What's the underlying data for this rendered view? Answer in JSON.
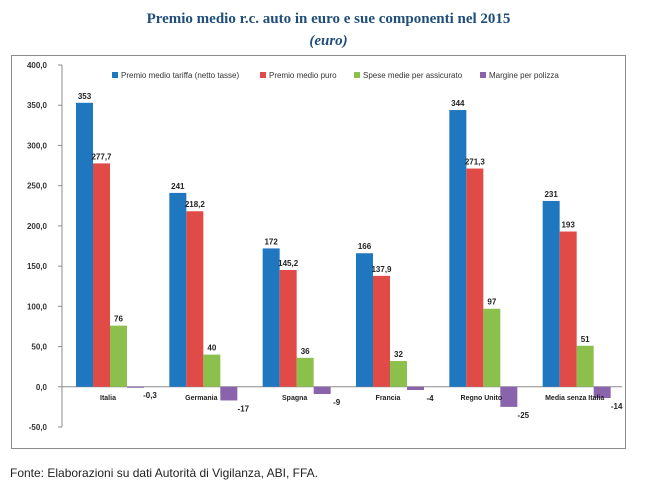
{
  "chart_data": {
    "type": "bar",
    "title": "Premio medio r.c. auto in euro e sue componenti nel 2015",
    "subtitle": "(euro)",
    "categories": [
      "Italia",
      "Germania",
      "Spagna",
      "Francia",
      "Regno Unito",
      "Media senza Italia"
    ],
    "series": [
      {
        "name": "Premio medio tariffa (netto tasse)",
        "color": "#1f77c0",
        "values": [
          353,
          241,
          172,
          166,
          344,
          231
        ],
        "labels": [
          "353",
          "241",
          "172",
          "166",
          "344",
          "231"
        ]
      },
      {
        "name": "Premio medio puro",
        "color": "#e04b47",
        "values": [
          277.7,
          218.2,
          145.2,
          137.9,
          271.3,
          193
        ],
        "labels": [
          "277,7",
          "218,2",
          "145,2",
          "137,9",
          "271,3",
          "193"
        ]
      },
      {
        "name": "Spese medie per assicurato",
        "color": "#8cc04d",
        "values": [
          76,
          40,
          36,
          32,
          97,
          51
        ],
        "labels": [
          "76",
          "40",
          "36",
          "32",
          "97",
          "51"
        ]
      },
      {
        "name": "Margine per polizza",
        "color": "#8a63ad",
        "values": [
          -0.3,
          -17,
          -9,
          -4,
          -25,
          -14
        ],
        "labels": [
          "-0,3",
          "-17",
          "-9",
          "-4",
          "-25",
          "-14"
        ]
      }
    ],
    "ylim": [
      -50,
      400
    ],
    "yticks": [
      -50,
      0,
      50,
      100,
      150,
      200,
      250,
      300,
      350,
      400
    ],
    "ytick_labels": [
      "-50,0",
      "0,0",
      "50,0",
      "100,0",
      "150,0",
      "200,0",
      "250,0",
      "300,0",
      "350,0",
      "400,0"
    ],
    "legend_position": "top",
    "grid": false
  },
  "source": "Fonte: Elaborazioni su dati Autorità di Vigilanza, ABI, FFA."
}
